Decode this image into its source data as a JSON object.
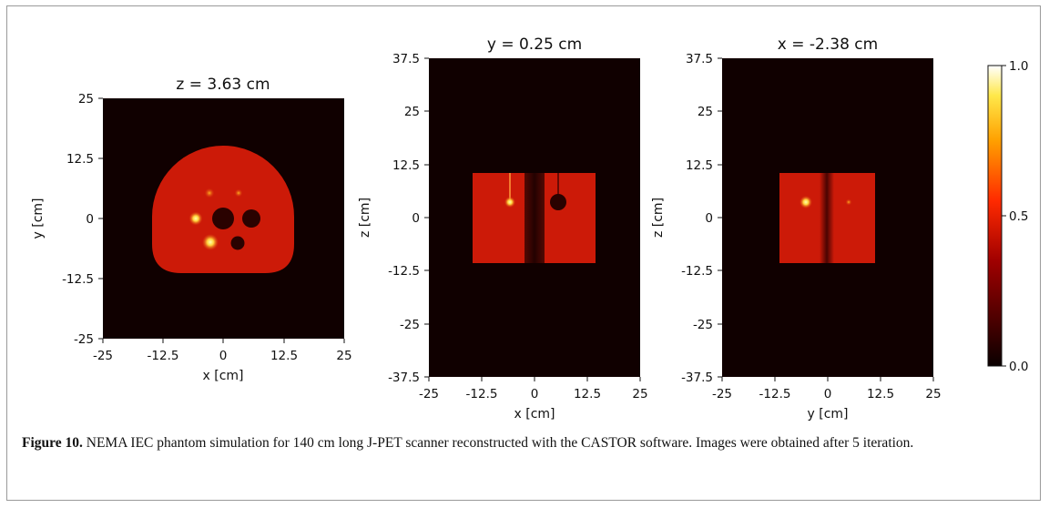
{
  "figure": {
    "panels": [
      {
        "title": "z = 3.63 cm",
        "xlabel": "x [cm]",
        "ylabel": "y [cm]",
        "xticks": [
          "-25",
          "-12.5",
          "0",
          "12.5",
          "25"
        ],
        "yticks": [
          "25",
          "12.5",
          "0",
          "-12.5",
          "-25"
        ]
      },
      {
        "title": "y = 0.25 cm",
        "xlabel": "x [cm]",
        "ylabel": "z [cm]",
        "xticks": [
          "-25",
          "-12.5",
          "0",
          "12.5",
          "25"
        ],
        "yticks": [
          "37.5",
          "25",
          "12.5",
          "0",
          "-12.5",
          "-25",
          "-37.5"
        ]
      },
      {
        "title": "x = -2.38 cm",
        "xlabel": "y [cm]",
        "ylabel": "z [cm]",
        "xticks": [
          "-25",
          "-12.5",
          "0",
          "12.5",
          "25"
        ],
        "yticks": [
          "37.5",
          "25",
          "12.5",
          "0",
          "-12.5",
          "-25",
          "-37.5"
        ]
      }
    ],
    "colorbar": {
      "ticks": [
        "1.0",
        "0.5",
        "0.0"
      ],
      "colormap": "hot"
    }
  },
  "caption": {
    "label": "Figure 10.",
    "text": " NEMA IEC phantom simulation for 140 cm long J-PET scanner reconstructed with the CASTOR software. Images were obtained after 5 iteration."
  },
  "colors": {
    "background": "#100000",
    "phantom": "#cc1a08",
    "hotspot": "#ffd23a"
  }
}
